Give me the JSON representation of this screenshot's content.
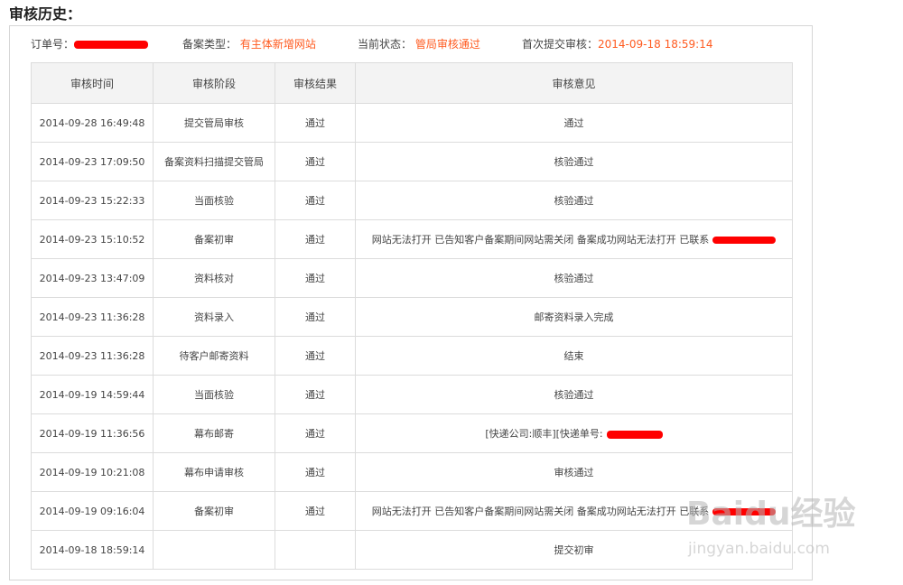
{
  "title": "审核历史：",
  "info": {
    "order_label": "订单号：",
    "type_label": "备案类型：",
    "type_value": "有主体新增网站",
    "status_label": "当前状态：",
    "status_value": "管局审核通过",
    "first_submit_label": "首次提交审核：",
    "first_submit_value": "2014-09-18 18:59:14"
  },
  "accent_color": "#ff5a1f",
  "table": {
    "headers": [
      "审核时间",
      "审核阶段",
      "审核结果",
      "审核意见"
    ],
    "rows": [
      {
        "time": "2014-09-28 16:49:48",
        "stage": "提交管局审核",
        "result": "通过",
        "comment": "通过"
      },
      {
        "time": "2014-09-23 17:09:50",
        "stage": "备案资料扫描提交管局",
        "result": "通过",
        "comment": "核验通过"
      },
      {
        "time": "2014-09-23 15:22:33",
        "stage": "当面核验",
        "result": "通过",
        "comment": "核验通过"
      },
      {
        "time": "2014-09-23 15:10:52",
        "stage": "备案初审",
        "result": "通过",
        "comment": "网站无法打开 已告知客户备案期间网站需关闭 备案成功网站无法打开 已联系"
      },
      {
        "time": "2014-09-23 13:47:09",
        "stage": "资料核对",
        "result": "通过",
        "comment": "核验通过"
      },
      {
        "time": "2014-09-23 11:36:28",
        "stage": "资料录入",
        "result": "通过",
        "comment": "邮寄资料录入完成"
      },
      {
        "time": "2014-09-23 11:36:28",
        "stage": "待客户邮寄资料",
        "result": "通过",
        "comment": "结束"
      },
      {
        "time": "2014-09-19 14:59:44",
        "stage": "当面核验",
        "result": "通过",
        "comment": "核验通过"
      },
      {
        "time": "2014-09-19 11:36:56",
        "stage": "幕布邮寄",
        "result": "通过",
        "comment": "[快递公司:顺丰][快递单号:"
      },
      {
        "time": "2014-09-19 10:21:08",
        "stage": "幕布申请审核",
        "result": "通过",
        "comment": "审核通过"
      },
      {
        "time": "2014-09-19 09:16:04",
        "stage": "备案初审",
        "result": "通过",
        "comment": "网站无法打开 已告知客户备案期间网站需关闭 备案成功网站无法打开 已联系"
      },
      {
        "time": "2014-09-18 18:59:14",
        "stage": "",
        "result": "",
        "comment": "提交初审"
      }
    ]
  },
  "watermark": {
    "brand": "Baidu经验",
    "url": "jingyan.baidu.com"
  }
}
